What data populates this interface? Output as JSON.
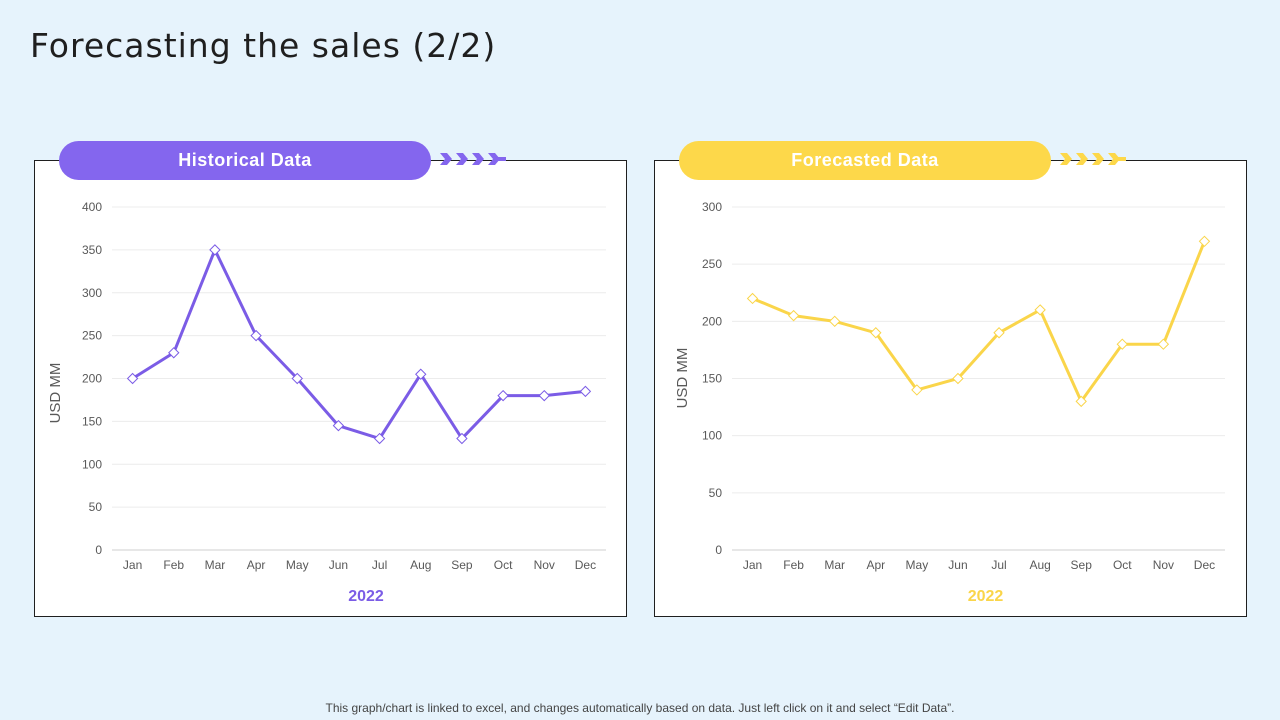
{
  "page": {
    "title": "Forecasting the sales (2/2)",
    "footer": "This graph/chart is linked to excel, and changes automatically based on data. Just left click on it and select “Edit Data”."
  },
  "colors": {
    "historical": "#7b5ce6",
    "historical_pill": "#8466ee",
    "forecast": "#fad54a",
    "forecast_pill": "#fdd84a"
  },
  "chart_data": [
    {
      "type": "line",
      "header": "Historical Data",
      "title": "",
      "categories": [
        "Jan",
        "Feb",
        "Mar",
        "Apr",
        "May",
        "Jun",
        "Jul",
        "Aug",
        "Sep",
        "Oct",
        "Nov",
        "Dec"
      ],
      "series": [
        {
          "name": "Historical Data",
          "values": [
            200,
            230,
            350,
            250,
            200,
            145,
            130,
            205,
            130,
            180,
            180,
            185
          ]
        }
      ],
      "xlabel": "2022",
      "ylabel": "USD MM",
      "ylim": [
        0,
        400
      ],
      "yticks": [
        0,
        50,
        100,
        150,
        200,
        250,
        300,
        350,
        400
      ],
      "grid": true
    },
    {
      "type": "line",
      "header": "Forecasted Data",
      "title": "",
      "categories": [
        "Jan",
        "Feb",
        "Mar",
        "Apr",
        "May",
        "Jun",
        "Jul",
        "Aug",
        "Sep",
        "Oct",
        "Nov",
        "Dec"
      ],
      "series": [
        {
          "name": "Forecasted Data",
          "values": [
            220,
            205,
            200,
            190,
            140,
            150,
            190,
            210,
            130,
            180,
            180,
            270
          ]
        }
      ],
      "xlabel": "2022",
      "ylabel": "USD MM",
      "ylim": [
        0,
        300
      ],
      "yticks": [
        0,
        50,
        100,
        150,
        200,
        250,
        300
      ],
      "grid": true
    }
  ]
}
